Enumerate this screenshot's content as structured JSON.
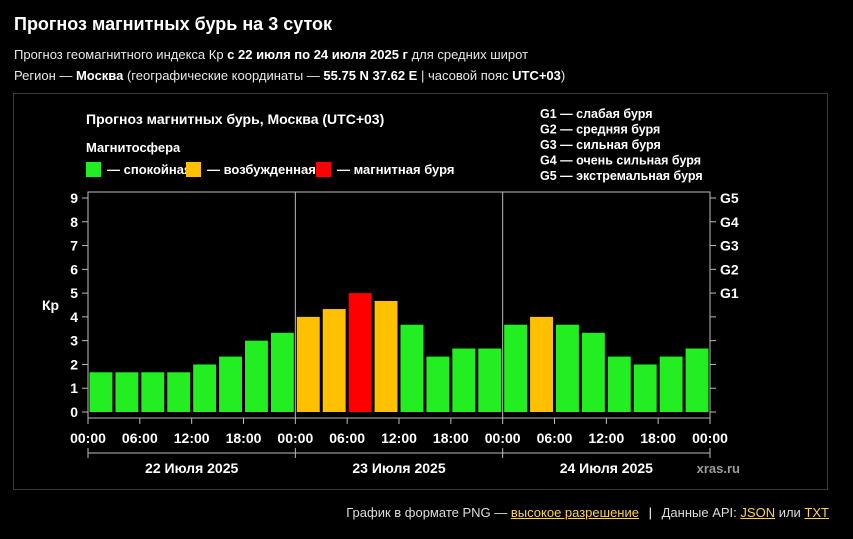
{
  "page": {
    "title": "Прогноз магнитных бурь на 3 суток",
    "sub1_pre": "Прогноз геомагнитного индекса Кр ",
    "sub1_bold": "с 22 июля по 24 июля 2025 г",
    "sub1_post": " для средних широт",
    "sub2_pre": "Регион — ",
    "sub2_city": "Москва",
    "sub2_mid": " (географические координаты — ",
    "sub2_coords": "55.75 N 37.62 E",
    "sub2_mid2": " | часовой пояс ",
    "sub2_tz": "UTC+03",
    "sub2_post": ")"
  },
  "chart_data": {
    "type": "bar",
    "title": "Прогноз магнитных бурь, Москва (UTC+03)",
    "legend_title": "Магнитосфера",
    "legend": [
      {
        "label": "— спокойная",
        "color": "#22ee22"
      },
      {
        "label": "— возбужденная",
        "color": "#ffc000"
      },
      {
        "label": "— магнитная буря",
        "color": "#ff0000"
      }
    ],
    "storm_scale": [
      "G1 — слабая буря",
      "G2 — средняя буря",
      "G3 — сильная буря",
      "G4 — очень сильная буря",
      "G5 — экстремальная буря"
    ],
    "ylabel": "Кр",
    "ylim": [
      0,
      9
    ],
    "yticks": [
      "0",
      "1",
      "2",
      "3",
      "4",
      "5",
      "6",
      "7",
      "8",
      "9"
    ],
    "right_ticks": [
      {
        "value": 5,
        "label": "G1"
      },
      {
        "value": 6,
        "label": "G2"
      },
      {
        "value": 7,
        "label": "G3"
      },
      {
        "value": 8,
        "label": "G4"
      },
      {
        "value": 9,
        "label": "G5"
      }
    ],
    "xtick_labels": [
      "00:00",
      "06:00",
      "12:00",
      "18:00",
      "00:00",
      "06:00",
      "12:00",
      "18:00",
      "00:00",
      "06:00",
      "12:00",
      "18:00",
      "00:00"
    ],
    "days": [
      "22 Июля 2025",
      "23 Июля 2025",
      "24 Июля 2025"
    ],
    "values": [
      1.67,
      1.67,
      1.67,
      1.67,
      2.0,
      2.33,
      3.0,
      3.33,
      4.0,
      4.33,
      5.0,
      4.67,
      3.67,
      2.33,
      2.67,
      2.67,
      3.67,
      4.0,
      3.67,
      3.33,
      2.33,
      2.0,
      2.33,
      2.67
    ],
    "colors": {
      "calm": "#22ee22",
      "active": "#ffc000",
      "storm": "#ff0000"
    },
    "watermark": "xras.ru"
  },
  "footer": {
    "png_text": "График в формате PNG —",
    "hires_link": "высокое разрешение",
    "sep": "|",
    "api_text": "Данные API:",
    "json_link": "JSON",
    "or": "или",
    "txt_link": "TXT"
  }
}
